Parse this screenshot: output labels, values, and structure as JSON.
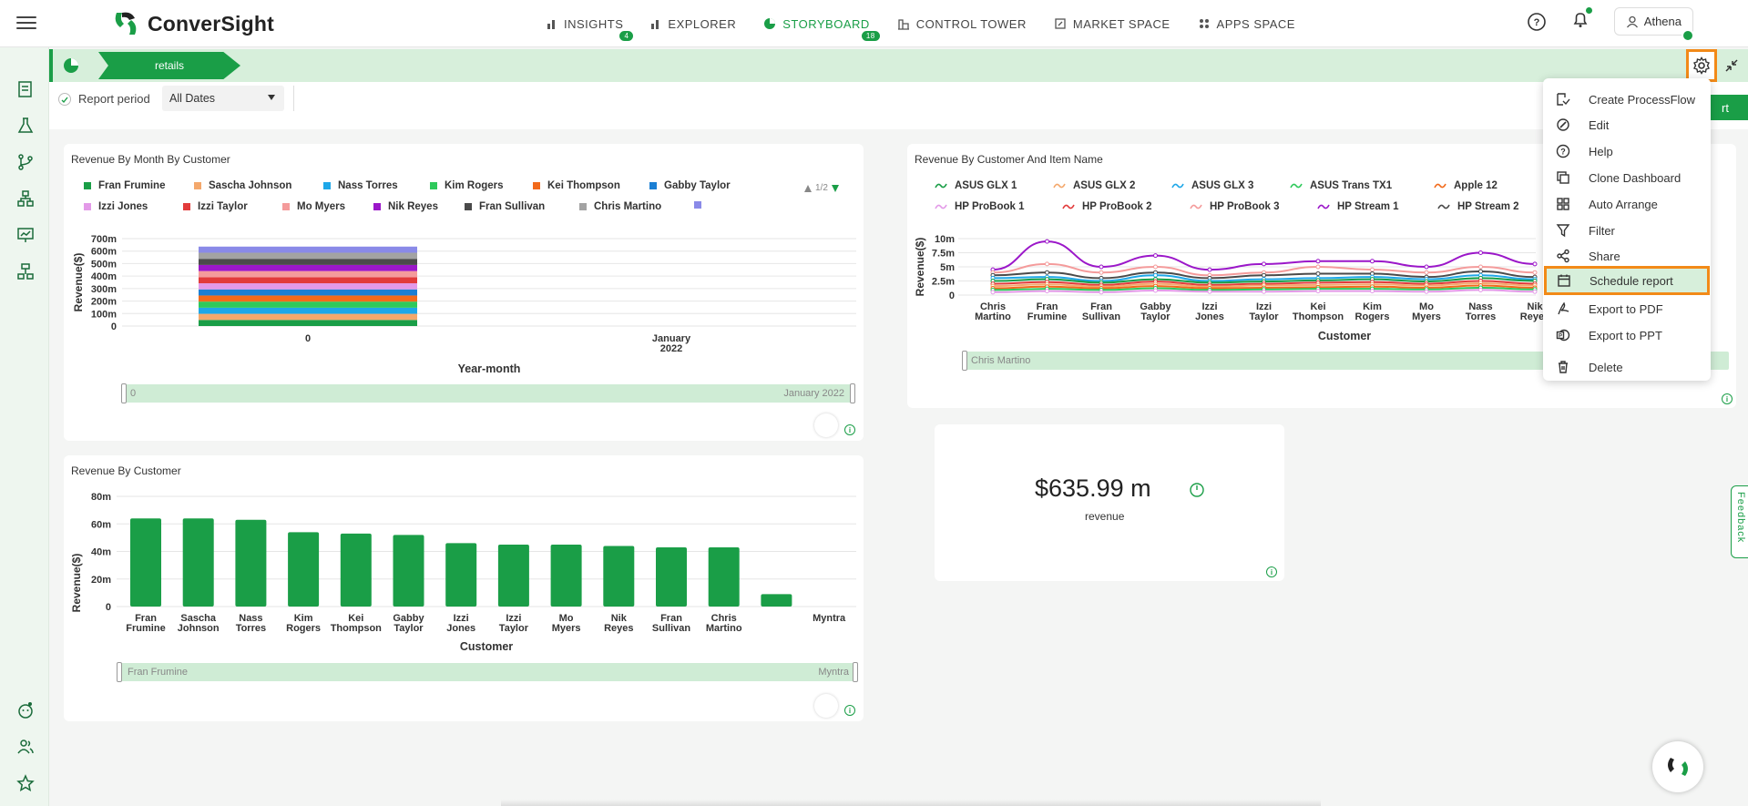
{
  "app": {
    "name": "ConverSight",
    "user": "Athena"
  },
  "nav": [
    {
      "label": "INSIGHTS",
      "badge": "4",
      "icon": "bar-chart-icon",
      "active": false
    },
    {
      "label": "EXPLORER",
      "badge": "",
      "icon": "bar-chart-icon",
      "active": false
    },
    {
      "label": "STORYBOARD",
      "badge": "18",
      "icon": "storyboard-icon",
      "active": true
    },
    {
      "label": "CONTROL TOWER",
      "badge": "",
      "icon": "tower-icon",
      "active": false
    },
    {
      "label": "MARKET SPACE",
      "badge": "",
      "icon": "market-icon",
      "active": false
    },
    {
      "label": "APPS SPACE",
      "badge": "",
      "icon": "grid-icon",
      "active": false
    }
  ],
  "story": {
    "tab": "retails"
  },
  "filters": {
    "report_period_label": "Report period",
    "date_value": "All Dates",
    "button_fragment": "rt"
  },
  "panel1": {
    "title": "Revenue By Month By Customer",
    "pager": "1/2",
    "legend": [
      {
        "name": "Fran Frumine",
        "color": "#1a9e47"
      },
      {
        "name": "Sascha Johnson",
        "color": "#f4a86c"
      },
      {
        "name": "Nass Torres",
        "color": "#1ea7e8"
      },
      {
        "name": "Kim Rogers",
        "color": "#2ec95b"
      },
      {
        "name": "Kei Thompson",
        "color": "#f26a1b"
      },
      {
        "name": "Gabby Taylor",
        "color": "#1b7fd4"
      },
      {
        "name": "Izzi Jones",
        "color": "#e39ae8"
      },
      {
        "name": "Izzi Taylor",
        "color": "#e23b3b"
      },
      {
        "name": "Mo Myers",
        "color": "#f49b9b"
      },
      {
        "name": "Nik Reyes",
        "color": "#9b17c9"
      },
      {
        "name": "Fran Sullivan",
        "color": "#4a4a4a"
      },
      {
        "name": "Chris Martino",
        "color": "#a3a3a3"
      },
      {
        "name": "",
        "color": "#8a8ae8"
      }
    ],
    "slider_start": "0",
    "slider_end": "January 2022"
  },
  "panel2": {
    "title": "Revenue By Customer And Item Name",
    "legend": [
      {
        "name": "ASUS GLX 1",
        "color": "#1a9e47"
      },
      {
        "name": "ASUS GLX 2",
        "color": "#f4a86c"
      },
      {
        "name": "ASUS GLX 3",
        "color": "#1ea7e8"
      },
      {
        "name": "ASUS Trans TX1",
        "color": "#2ec95b"
      },
      {
        "name": "Apple 12",
        "color": "#f26a1b"
      },
      {
        "name": "HP ProBook 1",
        "color": "#e39ae8"
      },
      {
        "name": "HP ProBook 2",
        "color": "#e23b3b"
      },
      {
        "name": "HP ProBook 3",
        "color": "#f49b9b"
      },
      {
        "name": "HP Stream 1",
        "color": "#9b17c9"
      },
      {
        "name": "HP Stream 2",
        "color": "#4a4a4a"
      }
    ],
    "slider_start": "Chris Martino"
  },
  "panel3": {
    "title": "Revenue By Customer",
    "slider_start": "Fran Frumine",
    "slider_end": "Myntra"
  },
  "kpi": {
    "value": "$635.99 m",
    "label": "revenue"
  },
  "menu": [
    {
      "label": "Create ProcessFlow",
      "icon": "processflow-icon"
    },
    {
      "label": "Edit",
      "icon": "edit-icon"
    },
    {
      "label": "Help",
      "icon": "help-icon"
    },
    {
      "label": "Clone Dashboard",
      "icon": "clone-icon"
    },
    {
      "label": "Auto Arrange",
      "icon": "auto-arrange-icon"
    },
    {
      "label": "Filter",
      "icon": "filter-icon"
    },
    {
      "label": "Share",
      "icon": "share-icon"
    },
    {
      "label": "Schedule report",
      "icon": "calendar-icon",
      "highlight": true
    },
    {
      "label": "Export to PDF",
      "icon": "pdf-icon"
    },
    {
      "label": "Export to PPT",
      "icon": "ppt-icon"
    },
    {
      "label": "Delete",
      "icon": "trash-icon"
    }
  ],
  "feedback": "Feedback",
  "chart_data": [
    {
      "type": "bar",
      "title": "Revenue By Month By Customer",
      "stacked": true,
      "categories": [
        "0",
        "January 2022"
      ],
      "xlabel": "Year-month",
      "ylabel": "Revenue($)",
      "yticks": [
        "0",
        "100m",
        "200m",
        "300m",
        "400m",
        "500m",
        "600m",
        "700m"
      ],
      "ylim": [
        0,
        700
      ],
      "total_at_0": 636,
      "total_at_jan_2022": 0
    },
    {
      "type": "line",
      "title": "Revenue By Customer And Item Name",
      "categories": [
        "Chris Martino",
        "Fran Frumine",
        "Fran Sullivan",
        "Gabby Taylor",
        "Izzi Jones",
        "Izzi Taylor",
        "Kei Thompson",
        "Kim Rogers",
        "Mo Myers",
        "Nass Torres",
        "Nik Reyes"
      ],
      "xlabel": "Customer",
      "ylabel": "Revenue($)",
      "yticks": [
        "0",
        "2.5m",
        "5m",
        "7.5m",
        "10m"
      ],
      "ylim": [
        0,
        10
      ],
      "series": [
        {
          "name": "HP Stream 1",
          "values": [
            4.5,
            9.5,
            5,
            7,
            4.5,
            5.5,
            6,
            6,
            5,
            7.5,
            5.5
          ]
        },
        {
          "name": "HP ProBook 3",
          "values": [
            4,
            5.5,
            4,
            5,
            3.5,
            4,
            5,
            4.5,
            4,
            5,
            4
          ]
        },
        {
          "name": "HP Stream 2",
          "values": [
            3.5,
            4,
            3,
            4,
            3,
            3.5,
            3.8,
            3.8,
            3.2,
            4.2,
            3.2
          ]
        },
        {
          "name": "ASUS GLX 3",
          "values": [
            3,
            3.2,
            2.5,
            3.5,
            2.5,
            2.8,
            3,
            3.2,
            2.8,
            3.5,
            2.8
          ]
        },
        {
          "name": "ASUS GLX 1",
          "values": [
            2.5,
            2.8,
            2.2,
            2.8,
            2.2,
            2.4,
            2.6,
            2.8,
            2.4,
            3,
            2.5
          ]
        },
        {
          "name": "HP ProBook 2",
          "values": [
            2,
            2.3,
            1.8,
            2.4,
            1.8,
            2,
            2.2,
            2.3,
            2,
            2.5,
            2
          ]
        },
        {
          "name": "ASUS GLX 2",
          "values": [
            1.6,
            1.9,
            1.5,
            2,
            1.5,
            1.7,
            1.8,
            1.9,
            1.7,
            2.1,
            1.7
          ]
        },
        {
          "name": "Apple 12",
          "values": [
            1.2,
            1.5,
            1.2,
            1.6,
            1.2,
            1.3,
            1.4,
            1.5,
            1.3,
            1.7,
            1.3
          ]
        },
        {
          "name": "ASUS Trans TX1",
          "values": [
            0.9,
            1.1,
            0.9,
            1.2,
            0.9,
            1,
            1.1,
            1.1,
            1,
            1.3,
            1
          ]
        },
        {
          "name": "HP ProBook 1",
          "values": [
            0.5,
            0.7,
            0.5,
            0.8,
            0.6,
            0.6,
            0.7,
            0.7,
            0.6,
            0.9,
            0.6
          ]
        }
      ]
    },
    {
      "type": "bar",
      "title": "Revenue By Customer",
      "categories": [
        "Fran Frumine",
        "Sascha Johnson",
        "Nass Torres",
        "Kim Rogers",
        "Kei Thompson",
        "Gabby Taylor",
        "Izzi Jones",
        "Izzi Taylor",
        "Mo Myers",
        "Nik Reyes",
        "Fran Sullivan",
        "Chris Martino",
        "",
        "Myntra"
      ],
      "values": [
        64,
        64,
        63,
        54,
        53,
        52,
        46,
        45,
        45,
        44,
        43,
        43,
        9,
        0
      ],
      "xlabel": "Customer",
      "ylabel": "Revenue($)",
      "yticks": [
        "0",
        "20m",
        "40m",
        "60m",
        "80m"
      ],
      "ylim": [
        0,
        80
      ]
    }
  ]
}
